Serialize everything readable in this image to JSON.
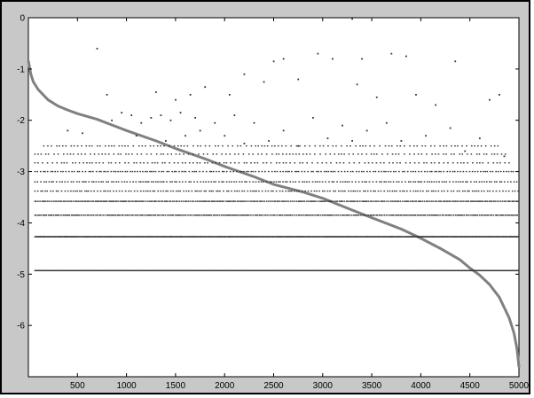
{
  "figure": {
    "background_color": "#c8c8c8",
    "axes_background": "#ffffff",
    "frame_color": "#000000"
  },
  "chart_data": {
    "type": "scatter",
    "title": "",
    "xlabel": "",
    "ylabel": "",
    "xlim": [
      0,
      5000
    ],
    "ylim": [
      -7,
      0
    ],
    "grid": false,
    "x_ticks": [
      {
        "value": 500,
        "label": "500"
      },
      {
        "value": 1000,
        "label": "1000"
      },
      {
        "value": 1500,
        "label": "1500"
      },
      {
        "value": 2000,
        "label": "2000"
      },
      {
        "value": 2500,
        "label": "2500"
      },
      {
        "value": 3000,
        "label": "3000"
      },
      {
        "value": 3500,
        "label": "3500"
      },
      {
        "value": 4000,
        "label": "4000"
      },
      {
        "value": 4500,
        "label": "4500"
      },
      {
        "value": 5000,
        "label": "5000"
      }
    ],
    "y_ticks": [
      {
        "value": 0,
        "label": "0"
      },
      {
        "value": -1,
        "label": "-1"
      },
      {
        "value": -2,
        "label": "-2"
      },
      {
        "value": -3,
        "label": "-3"
      },
      {
        "value": -4,
        "label": "-4"
      },
      {
        "value": -5,
        "label": "-5"
      },
      {
        "value": -6,
        "label": "-6"
      }
    ],
    "series": [
      {
        "type": "line",
        "color": "#808080",
        "x": [
          1,
          25,
          50,
          100,
          200,
          300,
          400,
          500,
          700,
          1000,
          1300,
          1500,
          1800,
          2000,
          2300,
          2500,
          2800,
          3000,
          3300,
          3500,
          3800,
          4000,
          4200,
          4400,
          4500,
          4600,
          4700,
          4800,
          4850,
          4900,
          4950,
          4980,
          5000
        ],
        "y": [
          -0.85,
          -1.1,
          -1.25,
          -1.4,
          -1.6,
          -1.72,
          -1.8,
          -1.87,
          -1.98,
          -2.2,
          -2.4,
          -2.55,
          -2.75,
          -2.9,
          -3.1,
          -3.25,
          -3.4,
          -3.52,
          -3.75,
          -3.9,
          -4.12,
          -4.3,
          -4.5,
          -4.72,
          -4.88,
          -5.02,
          -5.2,
          -5.45,
          -5.65,
          -5.85,
          -6.15,
          -6.45,
          -6.8
        ]
      },
      {
        "type": "scatter",
        "color": "#333333",
        "levels": [
          {
            "y": -4.93,
            "x_range": [
              60,
              5000
            ],
            "density": "solid"
          },
          {
            "y": -4.27,
            "x_range": [
              60,
              5000
            ],
            "density": "solid"
          },
          {
            "y": -3.85,
            "x_range": [
              60,
              5000
            ],
            "density": "dense"
          },
          {
            "y": -3.58,
            "x_range": [
              60,
              5000
            ],
            "density": "dense"
          },
          {
            "y": -3.38,
            "x_range": [
              60,
              5000
            ],
            "density": "medium"
          },
          {
            "y": -3.2,
            "x_range": [
              60,
              5000
            ],
            "density": "medium"
          },
          {
            "y": -3.0,
            "x_range": [
              60,
              4950
            ],
            "density": "medium"
          },
          {
            "y": -2.83,
            "x_range": [
              60,
              4900
            ],
            "density": "sparse"
          },
          {
            "y": -2.66,
            "x_range": [
              60,
              4900
            ],
            "density": "sparse"
          },
          {
            "y": -2.5,
            "x_range": [
              150,
              4800
            ],
            "density": "sparse"
          }
        ],
        "upper_points": [
          [
            700,
            -0.6
          ],
          [
            2500,
            -0.85
          ],
          [
            2600,
            -0.8
          ],
          [
            2950,
            -0.7
          ],
          [
            3100,
            -0.8
          ],
          [
            3300,
            -0.02
          ],
          [
            3400,
            -0.8
          ],
          [
            3700,
            -0.7
          ],
          [
            3850,
            -0.75
          ],
          [
            4350,
            -0.85
          ],
          [
            800,
            -1.5
          ],
          [
            1300,
            -1.45
          ],
          [
            1500,
            -1.6
          ],
          [
            1650,
            -1.5
          ],
          [
            1800,
            -1.35
          ],
          [
            2050,
            -1.5
          ],
          [
            2200,
            -1.1
          ],
          [
            2400,
            -1.25
          ],
          [
            2750,
            -1.2
          ],
          [
            3350,
            -1.3
          ],
          [
            3550,
            -1.55
          ],
          [
            3950,
            -1.5
          ],
          [
            4150,
            -1.7
          ],
          [
            4700,
            -1.6
          ],
          [
            4800,
            -1.5
          ],
          [
            400,
            -2.2
          ],
          [
            550,
            -2.25
          ],
          [
            850,
            -2.0
          ],
          [
            950,
            -1.85
          ],
          [
            1050,
            -1.9
          ],
          [
            1150,
            -2.05
          ],
          [
            1250,
            -1.95
          ],
          [
            1350,
            -1.9
          ],
          [
            1450,
            -2.0
          ],
          [
            1550,
            -1.85
          ],
          [
            1700,
            -1.95
          ],
          [
            1900,
            -2.05
          ],
          [
            2100,
            -1.9
          ],
          [
            2300,
            -2.05
          ],
          [
            2600,
            -2.2
          ],
          [
            2900,
            -1.95
          ],
          [
            3200,
            -2.1
          ],
          [
            3450,
            -2.2
          ],
          [
            3650,
            -2.05
          ],
          [
            4050,
            -2.3
          ],
          [
            4300,
            -2.15
          ],
          [
            4600,
            -2.35
          ],
          [
            1100,
            -2.3
          ],
          [
            1400,
            -2.4
          ],
          [
            1600,
            -2.3
          ],
          [
            1750,
            -2.2
          ],
          [
            2000,
            -2.3
          ],
          [
            2200,
            -2.45
          ],
          [
            2450,
            -2.4
          ],
          [
            2750,
            -2.5
          ],
          [
            3050,
            -2.35
          ],
          [
            3300,
            -2.4
          ],
          [
            3800,
            -2.4
          ],
          [
            4450,
            -2.6
          ],
          [
            4850,
            -2.7
          ]
        ]
      }
    ]
  }
}
